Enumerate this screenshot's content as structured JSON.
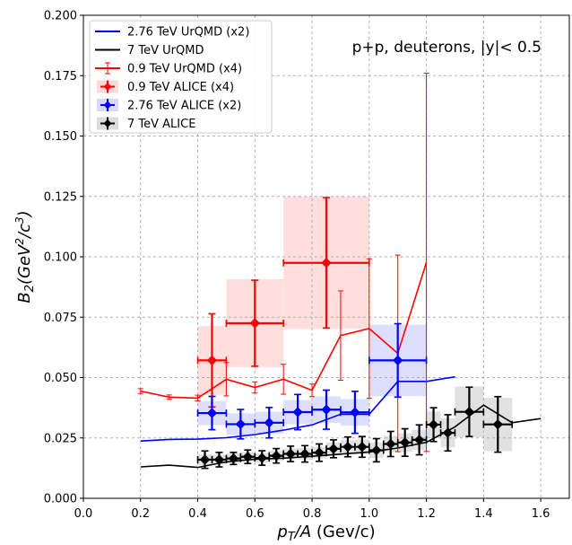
{
  "chart_data": {
    "type": "scatter",
    "title": "",
    "xlabel": "p_T/A (Gev/c)",
    "ylabel": "B_2(GeV^2/c^3)",
    "xlim": [
      0.0,
      1.7
    ],
    "ylim": [
      0.0,
      0.2
    ],
    "xticks": [
      "0.0",
      "0.2",
      "0.4",
      "0.6",
      "0.8",
      "1.0",
      "1.2",
      "1.4",
      "1.6"
    ],
    "yticks": [
      "0.000",
      "0.025",
      "0.050",
      "0.075",
      "0.100",
      "0.125",
      "0.150",
      "0.175",
      "0.200"
    ],
    "grid": true,
    "legend_position": "top-left",
    "annotation": "p+p, deuterons, |y|< 0.5",
    "series": [
      {
        "name": "2.76 TeV UrQMD (x2)",
        "kind": "line",
        "color": "#0000ff",
        "x": [
          0.2,
          0.3,
          0.4,
          0.5,
          0.6,
          0.7,
          0.8,
          0.9,
          1.0,
          1.1,
          1.2,
          1.3
        ],
        "y": [
          0.0237,
          0.0244,
          0.0245,
          0.0251,
          0.0264,
          0.0282,
          0.0304,
          0.0348,
          0.0348,
          0.0484,
          0.0484,
          0.0503
        ]
      },
      {
        "name": "7 TeV UrQMD",
        "kind": "line",
        "color": "#000000",
        "x": [
          0.2,
          0.3,
          0.4,
          0.5,
          0.6,
          0.7,
          0.8,
          0.9,
          1.0,
          1.1,
          1.2,
          1.3,
          1.4,
          1.5,
          1.6
        ],
        "y": [
          0.013,
          0.0137,
          0.0128,
          0.0151,
          0.0162,
          0.0166,
          0.0174,
          0.0183,
          0.0192,
          0.0208,
          0.0232,
          0.0296,
          0.0386,
          0.0313,
          0.033
        ]
      },
      {
        "name": "0.9 TeV UrQMD (x4)",
        "kind": "line_errorbar",
        "color": "#ff0000",
        "x": [
          0.2,
          0.3,
          0.4,
          0.5,
          0.6,
          0.7,
          0.8,
          0.9,
          1.0,
          1.1,
          1.2
        ],
        "y": [
          0.0444,
          0.0419,
          0.0415,
          0.0493,
          0.0459,
          0.0493,
          0.0447,
          0.0674,
          0.0703,
          0.06,
          0.0977
        ],
        "yerr": [
          0.001,
          0.0009,
          0.0012,
          0.0069,
          0.0023,
          0.0062,
          0.0026,
          0.0185,
          0.0289,
          0.0407,
          0.0783
        ]
      },
      {
        "name": "0.9 TeV ALICE (x4)",
        "kind": "errorbar",
        "color": "#ff0000",
        "box_color": "#ffd8d8",
        "x": [
          0.45,
          0.6,
          0.85
        ],
        "xerr": [
          0.05,
          0.1,
          0.15
        ],
        "y": [
          0.0571,
          0.0725,
          0.0975
        ],
        "yerr": [
          0.0193,
          0.0178,
          0.027
        ],
        "syst": [
          0.0142,
          0.0182,
          0.0274
        ]
      },
      {
        "name": "2.76 TeV ALICE (x2)",
        "kind": "errorbar",
        "color": "#0000ff",
        "box_color": "#d8d8ff",
        "x": [
          0.45,
          0.55,
          0.65,
          0.75,
          0.85,
          0.95,
          1.1
        ],
        "xerr": [
          0.05,
          0.05,
          0.05,
          0.05,
          0.05,
          0.05,
          0.1
        ],
        "y": [
          0.0353,
          0.0307,
          0.0313,
          0.0357,
          0.0367,
          0.0356,
          0.0571
        ],
        "yerr": [
          0.0069,
          0.0061,
          0.0063,
          0.0073,
          0.0081,
          0.0087,
          0.0152
        ],
        "syst": [
          0.005,
          0.0045,
          0.0045,
          0.005,
          0.0055,
          0.0055,
          0.0148
        ]
      },
      {
        "name": "7 TeV ALICE",
        "kind": "errorbar",
        "color": "#000000",
        "box_color": "#dcdcdc",
        "x": [
          0.425,
          0.475,
          0.525,
          0.575,
          0.625,
          0.675,
          0.725,
          0.775,
          0.825,
          0.875,
          0.925,
          0.975,
          1.025,
          1.075,
          1.125,
          1.175,
          1.225,
          1.275,
          1.35,
          1.45
        ],
        "xerr": [
          0.025,
          0.025,
          0.025,
          0.025,
          0.025,
          0.025,
          0.025,
          0.025,
          0.025,
          0.025,
          0.025,
          0.025,
          0.025,
          0.025,
          0.025,
          0.025,
          0.025,
          0.025,
          0.05,
          0.05
        ],
        "y": [
          0.016,
          0.016,
          0.0165,
          0.0172,
          0.0167,
          0.0176,
          0.0184,
          0.0184,
          0.0189,
          0.0205,
          0.0213,
          0.0213,
          0.0199,
          0.0225,
          0.0231,
          0.0242,
          0.0305,
          0.0271,
          0.0358,
          0.0306
        ],
        "yerr": [
          0.0036,
          0.003,
          0.0025,
          0.0028,
          0.003,
          0.003,
          0.0032,
          0.0034,
          0.0036,
          0.0037,
          0.0041,
          0.0043,
          0.0048,
          0.0052,
          0.0057,
          0.0062,
          0.007,
          0.0075,
          0.0102,
          0.0115
        ],
        "syst": [
          0.0022,
          0.002,
          0.002,
          0.002,
          0.002,
          0.0022,
          0.0022,
          0.0024,
          0.0024,
          0.0026,
          0.0028,
          0.003,
          0.0032,
          0.0034,
          0.0038,
          0.0042,
          0.0055,
          0.006,
          0.0105,
          0.011
        ]
      }
    ]
  }
}
